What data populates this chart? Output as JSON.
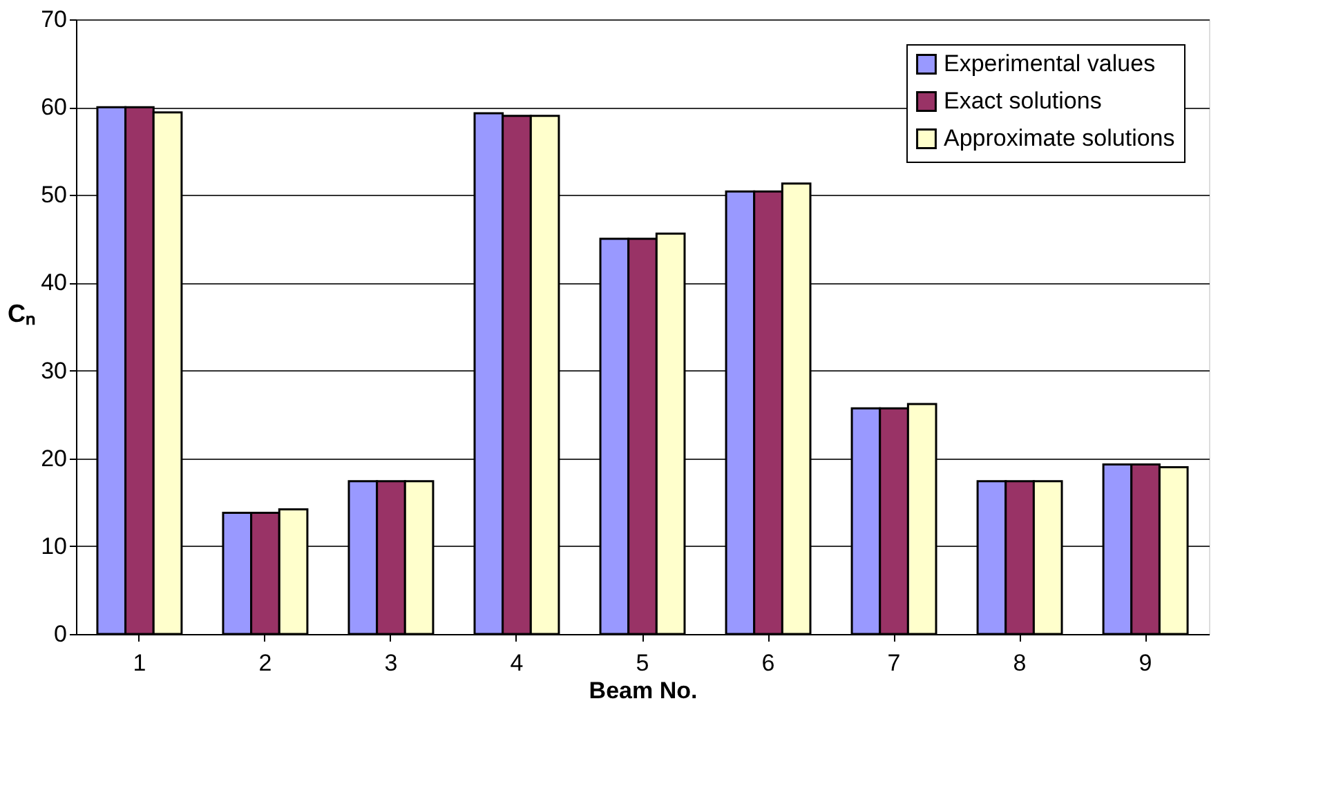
{
  "chart_data": {
    "type": "bar",
    "xlabel": "Beam No.",
    "ylabel": "Cₙ",
    "categories": [
      "1",
      "2",
      "3",
      "4",
      "5",
      "6",
      "7",
      "8",
      "9"
    ],
    "series": [
      {
        "name": "Experimental values",
        "color": "#9999ff",
        "values": [
          60,
          13.8,
          17.4,
          59.3,
          45,
          50.4,
          25.7,
          17.4,
          19.3
        ]
      },
      {
        "name": "Exact solutions",
        "color": "#993366",
        "values": [
          60,
          13.8,
          17.4,
          59.0,
          45,
          50.4,
          25.7,
          17.4,
          19.3
        ]
      },
      {
        "name": "Approximate solutions",
        "color": "#ffffcc",
        "values": [
          59.4,
          14.2,
          17.4,
          59.0,
          45.6,
          51.3,
          26.2,
          17.4,
          19.0
        ]
      }
    ],
    "ylim": [
      0,
      70
    ],
    "yticks": [
      0,
      10,
      20,
      30,
      40,
      50,
      60,
      70
    ],
    "grid": "y",
    "legend": "top right"
  }
}
